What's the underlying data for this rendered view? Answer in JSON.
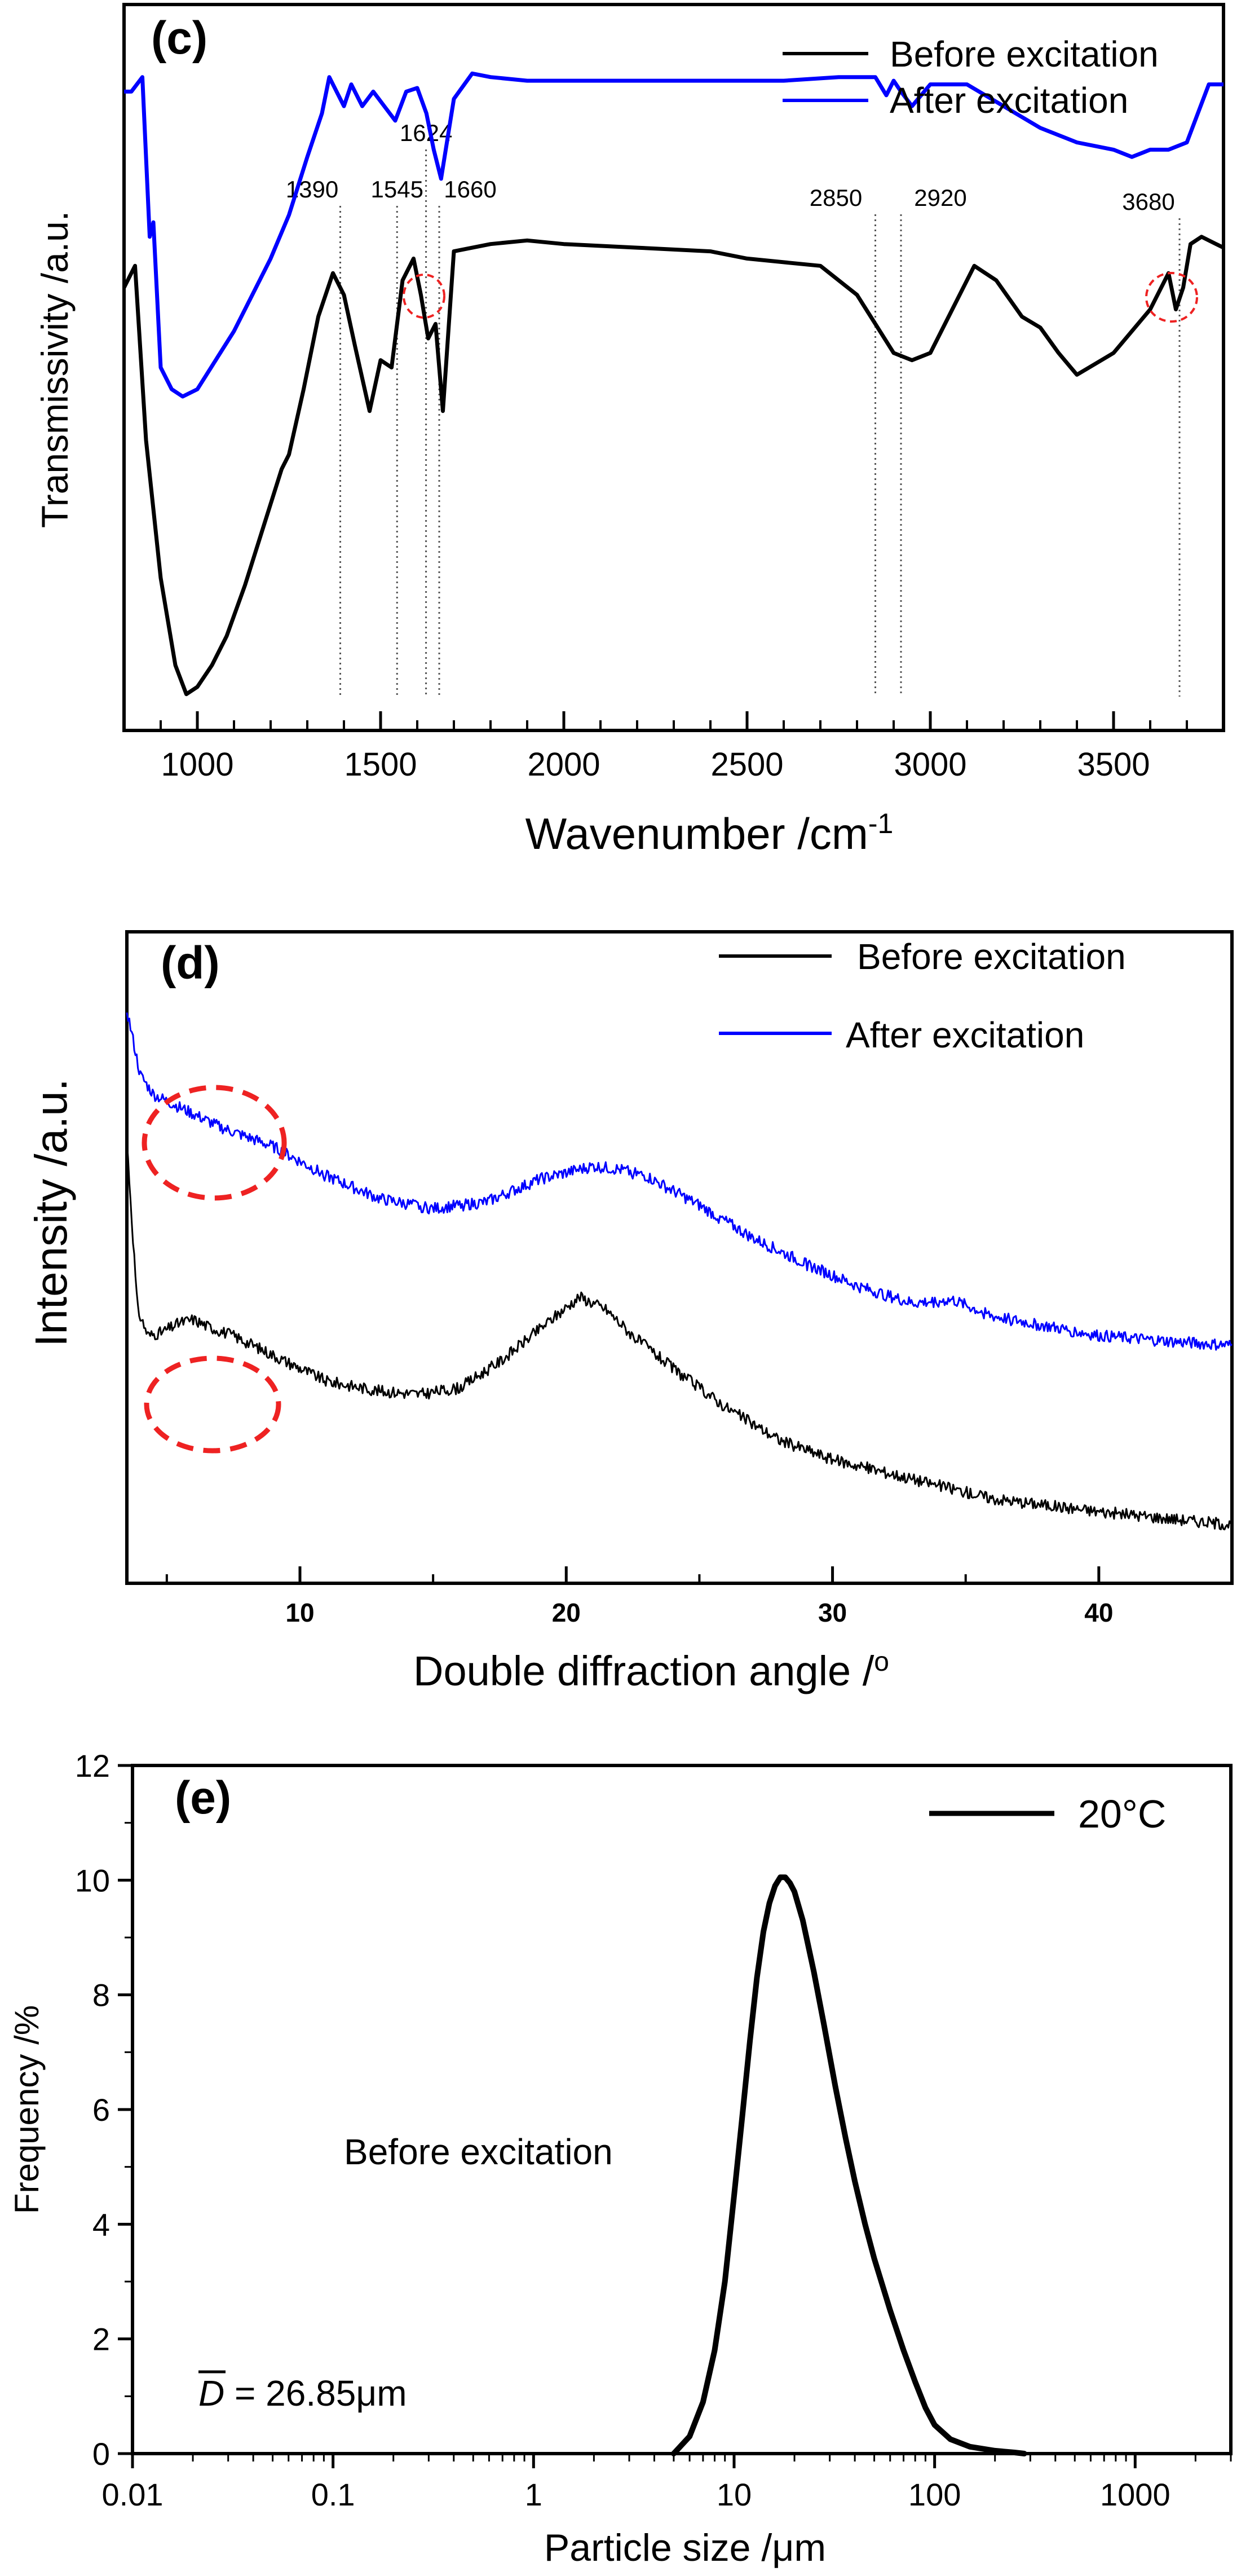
{
  "chart_data": [
    {
      "type": "line",
      "panel_label": "(c)",
      "xlabel": "Wavenumber /cm",
      "xlabel_superscript": "-1",
      "ylabel": "Transmissivity /a.u.",
      "xlim": [
        800,
        3800
      ],
      "ylim": [
        0,
        1
      ],
      "x_ticks": [
        1000,
        1500,
        2000,
        2500,
        3000,
        3500
      ],
      "y_ticks_shown": false,
      "legend": [
        {
          "label": "Before excitation",
          "color": "#000000"
        },
        {
          "label": "After excitation",
          "color": "#0000ff"
        }
      ],
      "annotations": [
        {
          "label": "1390",
          "x": 1390
        },
        {
          "label": "1545",
          "x": 1545
        },
        {
          "label": "1624",
          "x": 1624
        },
        {
          "label": "1660",
          "x": 1660
        },
        {
          "label": "2850",
          "x": 2850
        },
        {
          "label": "2920",
          "x": 2920
        },
        {
          "label": "3680",
          "x": 3680
        }
      ],
      "series": [
        {
          "name": "Before excitation",
          "color": "#000000",
          "x": [
            800,
            830,
            860,
            900,
            940,
            970,
            1000,
            1040,
            1080,
            1130,
            1180,
            1230,
            1250,
            1290,
            1330,
            1370,
            1400,
            1430,
            1470,
            1500,
            1530,
            1560,
            1590,
            1610,
            1630,
            1650,
            1670,
            1700,
            1800,
            1900,
            2000,
            2200,
            2400,
            2500,
            2600,
            2700,
            2800,
            2850,
            2900,
            2950,
            3000,
            3060,
            3120,
            3180,
            3250,
            3300,
            3350,
            3400,
            3500,
            3600,
            3650,
            3670,
            3690,
            3710,
            3740,
            3780,
            3800
          ],
          "y": [
            0.61,
            0.64,
            0.4,
            0.21,
            0.09,
            0.05,
            0.06,
            0.09,
            0.13,
            0.2,
            0.28,
            0.36,
            0.38,
            0.47,
            0.57,
            0.63,
            0.6,
            0.53,
            0.44,
            0.51,
            0.5,
            0.62,
            0.65,
            0.6,
            0.54,
            0.56,
            0.44,
            0.66,
            0.67,
            0.675,
            0.67,
            0.665,
            0.66,
            0.65,
            0.645,
            0.64,
            0.6,
            0.56,
            0.52,
            0.51,
            0.52,
            0.58,
            0.64,
            0.62,
            0.57,
            0.555,
            0.52,
            0.49,
            0.52,
            0.58,
            0.63,
            0.58,
            0.61,
            0.67,
            0.68,
            0.67,
            0.665
          ]
        },
        {
          "name": "After excitation",
          "color": "#0000ff",
          "x": [
            800,
            820,
            850,
            870,
            880,
            900,
            930,
            960,
            1000,
            1050,
            1100,
            1150,
            1200,
            1250,
            1300,
            1340,
            1360,
            1380,
            1400,
            1420,
            1450,
            1480,
            1510,
            1540,
            1570,
            1600,
            1625,
            1645,
            1665,
            1700,
            1750,
            1800,
            1900,
            2000,
            2200,
            2400,
            2600,
            2750,
            2850,
            2880,
            2900,
            2920,
            2950,
            3000,
            3100,
            3200,
            3300,
            3400,
            3500,
            3550,
            3600,
            3650,
            3700,
            3730,
            3760,
            3800
          ],
          "y": [
            0.88,
            0.88,
            0.9,
            0.68,
            0.7,
            0.5,
            0.47,
            0.46,
            0.47,
            0.51,
            0.55,
            0.6,
            0.65,
            0.71,
            0.79,
            0.85,
            0.9,
            0.88,
            0.86,
            0.89,
            0.86,
            0.88,
            0.86,
            0.84,
            0.88,
            0.885,
            0.85,
            0.8,
            0.76,
            0.87,
            0.905,
            0.9,
            0.895,
            0.895,
            0.895,
            0.895,
            0.895,
            0.9,
            0.9,
            0.875,
            0.895,
            0.88,
            0.86,
            0.89,
            0.89,
            0.86,
            0.83,
            0.81,
            0.8,
            0.79,
            0.8,
            0.8,
            0.81,
            0.85,
            0.89,
            0.89
          ]
        }
      ]
    },
    {
      "type": "line",
      "panel_label": "(d)",
      "xlabel": "Double diffraction angle /",
      "xlabel_superscript": "o",
      "ylabel": "Intensity /a.u.",
      "xlim": [
        3.5,
        45
      ],
      "ylim": [
        0,
        1
      ],
      "x_ticks": [
        10,
        20,
        30,
        40
      ],
      "y_ticks_shown": false,
      "legend": [
        {
          "label": "Before excitation",
          "color": "#000000"
        },
        {
          "label": "After excitation",
          "color": "#0000ff"
        }
      ],
      "series": [
        {
          "name": "Before excitation",
          "color": "#000000",
          "x": [
            3.5,
            3.9,
            4.3,
            4.8,
            5.5,
            6,
            6.5,
            7.5,
            9,
            11,
            13,
            14.5,
            16,
            17.5,
            19,
            20.5,
            21.5,
            22.5,
            24,
            26,
            28,
            30,
            33,
            36,
            40,
            45
          ],
          "y": [
            0.68,
            0.42,
            0.38,
            0.385,
            0.4,
            0.405,
            0.395,
            0.38,
            0.35,
            0.31,
            0.295,
            0.29,
            0.3,
            0.34,
            0.39,
            0.44,
            0.42,
            0.38,
            0.33,
            0.27,
            0.22,
            0.19,
            0.16,
            0.13,
            0.11,
            0.09
          ]
        },
        {
          "name": "After excitation",
          "color": "#0000ff",
          "x": [
            3.5,
            4,
            4.5,
            5.5,
            7,
            9,
            11,
            13,
            15,
            17,
            19,
            21,
            22,
            23,
            25,
            27,
            29,
            31,
            33,
            34.5,
            36,
            38,
            40,
            43,
            45
          ],
          "y": [
            0.88,
            0.78,
            0.75,
            0.73,
            0.7,
            0.67,
            0.625,
            0.59,
            0.575,
            0.585,
            0.62,
            0.64,
            0.635,
            0.625,
            0.58,
            0.53,
            0.49,
            0.455,
            0.43,
            0.435,
            0.41,
            0.395,
            0.38,
            0.37,
            0.365
          ]
        }
      ]
    },
    {
      "type": "line",
      "panel_label": "(e)",
      "xlabel": "Particle size /μm",
      "ylabel": "Frequency /%",
      "x_scale": "log",
      "xlim": [
        0.01,
        3000
      ],
      "ylim": [
        0,
        12
      ],
      "x_ticks": [
        0.01,
        0.1,
        1,
        10,
        100,
        1000
      ],
      "x_tick_labels": [
        "0.01",
        "0.1",
        "1",
        "10",
        "100",
        "1000"
      ],
      "y_ticks": [
        0,
        2,
        4,
        6,
        8,
        10,
        12
      ],
      "y_tick_labels": [
        "0",
        "2",
        "4",
        "6",
        "8",
        "10",
        "12"
      ],
      "legend": [
        {
          "label": "20°C",
          "color": "#000000"
        }
      ],
      "annotation_text": "Before excitation",
      "mean_diameter_symbol": "D",
      "mean_diameter_text": " = 26.85μm",
      "series": [
        {
          "name": "20°C",
          "color": "#000000",
          "x": [
            5,
            6,
            7,
            8,
            9,
            10,
            11,
            12,
            13,
            14,
            15,
            16,
            17,
            18,
            19,
            20,
            22,
            25,
            28,
            32,
            36,
            40,
            45,
            50,
            60,
            70,
            80,
            90,
            100,
            120,
            150,
            200,
            250,
            280
          ],
          "y": [
            0,
            0.3,
            0.9,
            1.8,
            3,
            4.5,
            5.9,
            7.2,
            8.3,
            9.1,
            9.6,
            9.9,
            10.05,
            10.05,
            9.95,
            9.8,
            9.3,
            8.4,
            7.5,
            6.4,
            5.5,
            4.75,
            4,
            3.4,
            2.5,
            1.8,
            1.25,
            0.8,
            0.5,
            0.25,
            0.12,
            0.05,
            0.02,
            0
          ]
        }
      ]
    }
  ]
}
